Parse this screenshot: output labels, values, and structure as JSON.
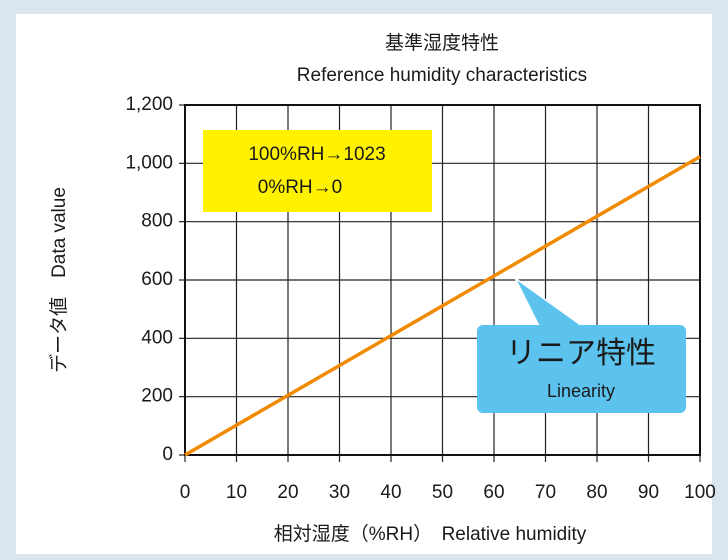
{
  "chart_data": {
    "type": "line",
    "title": "基準湿度特性",
    "subtitle": "Reference humidity characteristics",
    "x_label": "相対湿度（%RH）　Relative humidity",
    "y_label": "データ値　Data value",
    "x": [
      0,
      100
    ],
    "series": [
      {
        "name": "Linearity",
        "color": "#f08a00",
        "values": [
          0,
          1023
        ]
      }
    ],
    "xlim": [
      0,
      100
    ],
    "xticks": [
      0,
      10,
      20,
      30,
      40,
      50,
      60,
      70,
      80,
      90,
      100
    ],
    "ylim": [
      0,
      1200
    ],
    "yticks": [
      0,
      200,
      400,
      600,
      800,
      {
        "value": 1000,
        "label": "1,000"
      },
      {
        "value": 1200,
        "label": "1,200"
      }
    ],
    "grid": true,
    "annotations": {
      "box": [
        "100%RH→1023",
        "0%RH→0"
      ],
      "callout": [
        "リニア特性",
        "Linearity"
      ]
    }
  }
}
